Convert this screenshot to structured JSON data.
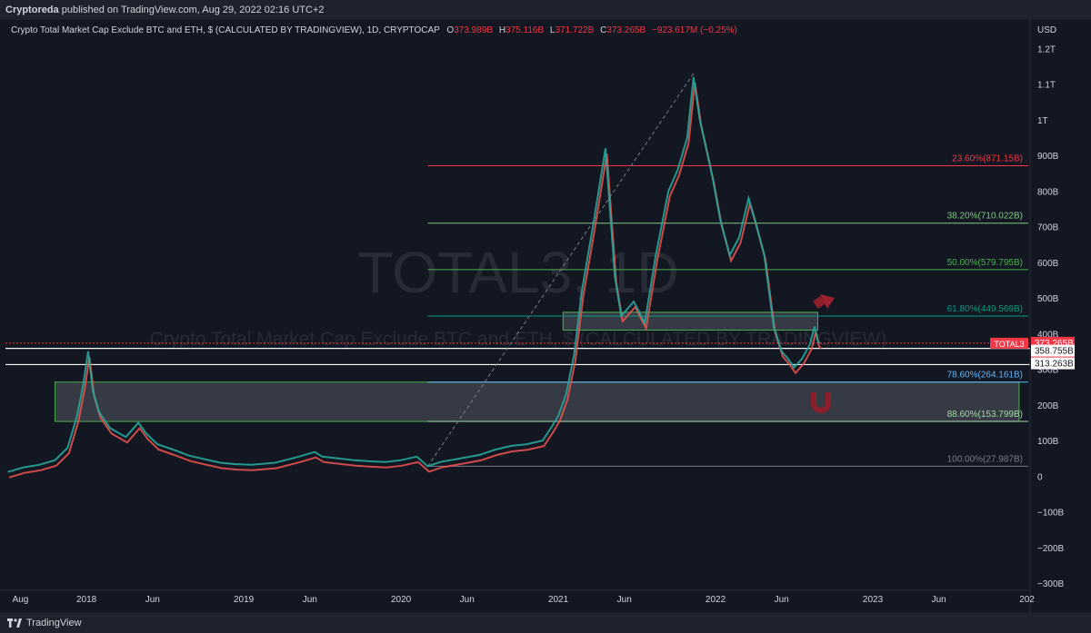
{
  "header": {
    "publisher": "Cryptoreda",
    "published_text": "published on TradingView.com, Aug 29, 2022 02:16 UTC+2"
  },
  "legend": {
    "title": "Crypto Total Market Cap Exclude BTC and ETH, $ (CALCULATED BY TRADINGVIEW), 1D, CRYPTOCAP",
    "o_label": "O",
    "o_value": "373.989B",
    "h_label": "H",
    "h_value": "375.116B",
    "l_label": "L",
    "l_value": "371.722B",
    "c_label": "C",
    "c_value": "373.265B",
    "change": "−923.617M (−0.25%)"
  },
  "watermark": {
    "symbol": "TOTAL3, 1D",
    "description": "Crypto Total Market Cap Exclude BTC and ETH, $ (CALCULATED BY TRADINGVIEW)"
  },
  "price_axis": {
    "currency": "USD",
    "ticks": [
      "1.2T",
      "1.1T",
      "1T",
      "900B",
      "800B",
      "700B",
      "600B",
      "500B",
      "400B",
      "300B",
      "200B",
      "100B",
      "0",
      "−100B",
      "−200B",
      "−300B"
    ],
    "tick_values": [
      1200,
      1100,
      1000,
      900,
      800,
      700,
      600,
      500,
      400,
      300,
      200,
      100,
      0,
      -100,
      -200,
      -300
    ]
  },
  "time_axis": {
    "labels": [
      "Aug",
      "2018",
      "Jun",
      "2019",
      "Jun",
      "2020",
      "Jun",
      "2021",
      "Jun",
      "2022",
      "Jun",
      "2023",
      "Jun",
      "202"
    ]
  },
  "badges": {
    "symbol": "TOTAL3",
    "price": "373.265B",
    "countdown": "23:43:45",
    "level1": "358.755B",
    "level2": "313.263B"
  },
  "fib_levels": [
    {
      "label": "23.60%(871.15B)",
      "value": 871.15,
      "color": "#f23645"
    },
    {
      "label": "38.20%(710.022B)",
      "value": 710.022,
      "color": "#81c784"
    },
    {
      "label": "50.00%(579.795B)",
      "value": 579.795,
      "color": "#4caf50"
    },
    {
      "label": "61.80%(449.569B)",
      "value": 449.569,
      "color": "#089981"
    },
    {
      "label": "78.60%(264.161B)",
      "value": 264.161,
      "color": "#64b5f6"
    },
    {
      "label": "88.60%(153.799B)",
      "value": 153.799,
      "color": "#a5d6a7"
    },
    {
      "label": "100.00%(27.987B)",
      "value": 27.987,
      "color": "#787b86"
    }
  ],
  "footer": {
    "brand": "TradingView"
  },
  "chart_data": {
    "type": "line",
    "title": "Crypto Total Market Cap Exclude BTC and ETH, $ (CALCULATED BY TRADINGVIEW), 1D, CRYPTOCAP",
    "ylabel": "USD",
    "ylim": [
      -320,
      1280
    ],
    "xlim": [
      2017.45,
      2024.0
    ],
    "series": [
      {
        "name": "TOTAL3",
        "points": [
          [
            2017.5,
            12
          ],
          [
            2017.6,
            25
          ],
          [
            2017.7,
            32
          ],
          [
            2017.8,
            45
          ],
          [
            2017.88,
            80
          ],
          [
            2017.94,
            170
          ],
          [
            2017.98,
            260
          ],
          [
            2018.01,
            350
          ],
          [
            2018.04,
            240
          ],
          [
            2018.08,
            180
          ],
          [
            2018.15,
            135
          ],
          [
            2018.25,
            110
          ],
          [
            2018.33,
            150
          ],
          [
            2018.38,
            120
          ],
          [
            2018.45,
            90
          ],
          [
            2018.55,
            75
          ],
          [
            2018.65,
            58
          ],
          [
            2018.75,
            48
          ],
          [
            2018.85,
            38
          ],
          [
            2018.95,
            34
          ],
          [
            2019.05,
            32
          ],
          [
            2019.2,
            38
          ],
          [
            2019.35,
            55
          ],
          [
            2019.45,
            68
          ],
          [
            2019.5,
            55
          ],
          [
            2019.6,
            50
          ],
          [
            2019.7,
            45
          ],
          [
            2019.8,
            42
          ],
          [
            2019.9,
            40
          ],
          [
            2020.0,
            45
          ],
          [
            2020.1,
            55
          ],
          [
            2020.17,
            28
          ],
          [
            2020.25,
            40
          ],
          [
            2020.35,
            48
          ],
          [
            2020.5,
            60
          ],
          [
            2020.6,
            75
          ],
          [
            2020.7,
            85
          ],
          [
            2020.8,
            90
          ],
          [
            2020.9,
            100
          ],
          [
            2020.96,
            140
          ],
          [
            2021.0,
            170
          ],
          [
            2021.05,
            230
          ],
          [
            2021.1,
            340
          ],
          [
            2021.15,
            520
          ],
          [
            2021.22,
            700
          ],
          [
            2021.3,
            920
          ],
          [
            2021.36,
            560
          ],
          [
            2021.4,
            450
          ],
          [
            2021.48,
            490
          ],
          [
            2021.55,
            430
          ],
          [
            2021.62,
            620
          ],
          [
            2021.7,
            800
          ],
          [
            2021.76,
            860
          ],
          [
            2021.82,
            950
          ],
          [
            2021.86,
            1120
          ],
          [
            2021.9,
            1000
          ],
          [
            2021.94,
            920
          ],
          [
            2021.98,
            840
          ],
          [
            2022.03,
            720
          ],
          [
            2022.09,
            620
          ],
          [
            2022.15,
            670
          ],
          [
            2022.21,
            780
          ],
          [
            2022.25,
            720
          ],
          [
            2022.31,
            620
          ],
          [
            2022.37,
            420
          ],
          [
            2022.42,
            350
          ],
          [
            2022.46,
            330
          ],
          [
            2022.5,
            305
          ],
          [
            2022.55,
            330
          ],
          [
            2022.6,
            370
          ],
          [
            2022.63,
            420
          ],
          [
            2022.65,
            380
          ],
          [
            2022.66,
            373.265
          ]
        ]
      }
    ],
    "zones": [
      {
        "from_x": 2017.8,
        "to_x": 2023.93,
        "from_y": 153.799,
        "to_y": 264.161
      },
      {
        "from_x": 2021.03,
        "to_x": 2022.65,
        "from_y": 410,
        "to_y": 460
      }
    ],
    "horizontal_lines": [
      358.755,
      313.263
    ],
    "current_price": 373.265,
    "trend_line": [
      [
        2020.17,
        28
      ],
      [
        2021.86,
        1130
      ]
    ]
  }
}
